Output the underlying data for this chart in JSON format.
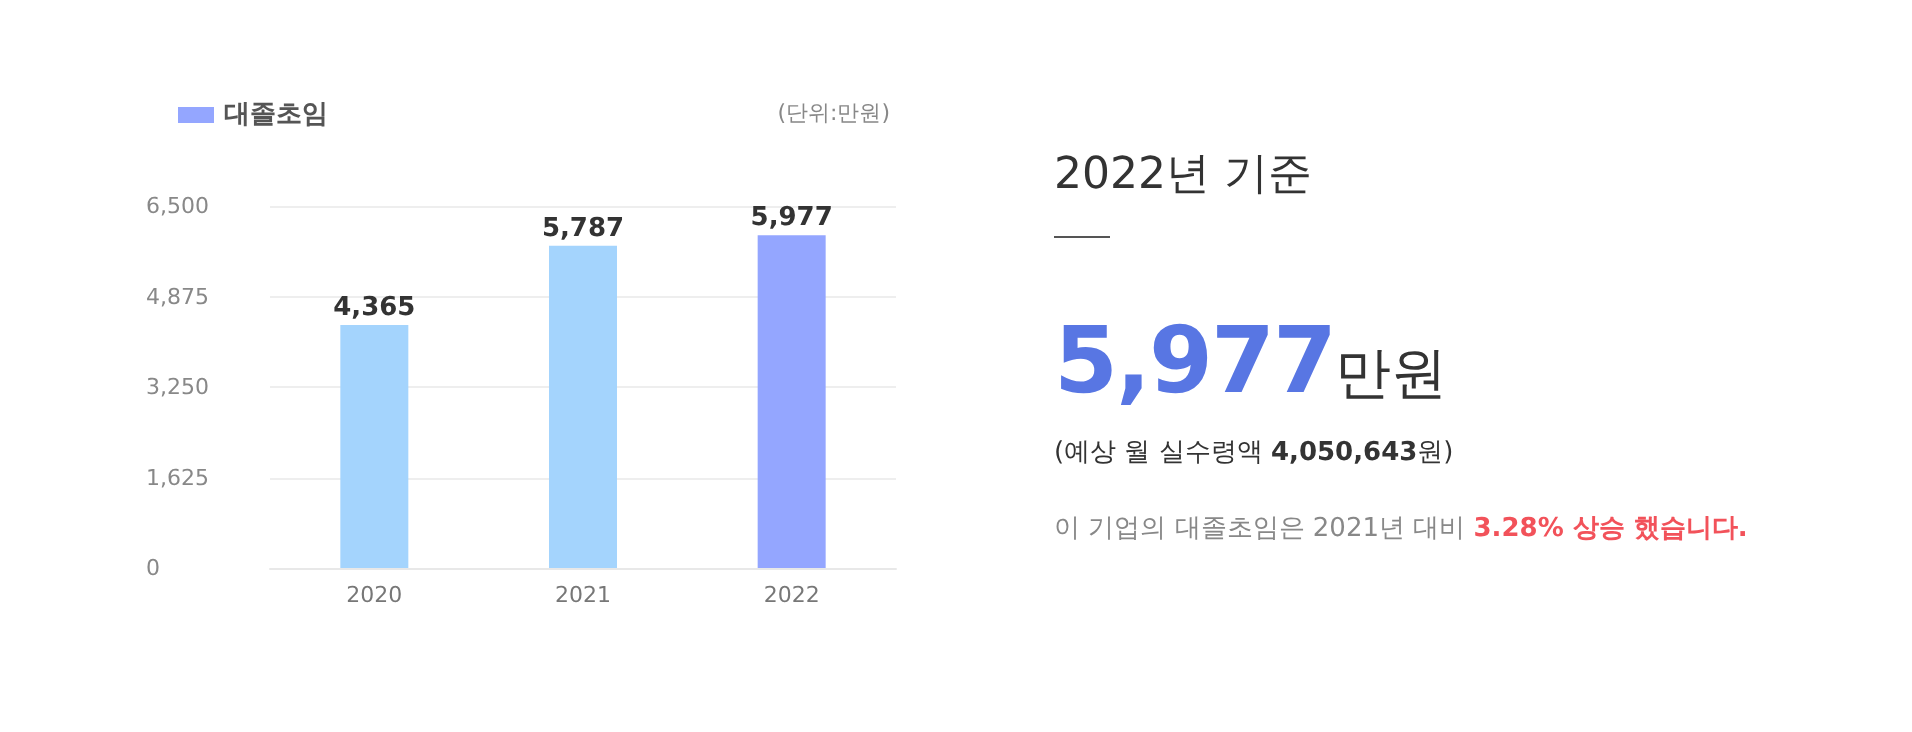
{
  "chart_data": {
    "type": "bar",
    "categories": [
      "2020",
      "2021",
      "2022"
    ],
    "series": [
      {
        "name": "대졸초임",
        "color": "#94a6ff",
        "colors": [
          "#a4d4fd",
          "#a4d4fd",
          "#94a6ff"
        ],
        "values": [
          4365,
          5787,
          5977
        ],
        "value_labels": [
          "4,365",
          "5,787",
          "5,977"
        ]
      }
    ],
    "ylim": [
      0,
      6500
    ],
    "yticks": [
      0,
      {
        "value": 1625,
        "label": "1,625"
      },
      {
        "value": 3250,
        "label": "3,250"
      },
      {
        "value": 4875,
        "label": "4,875"
      },
      {
        "value": 6500,
        "label": "6,500"
      }
    ],
    "grid": "y",
    "legend": "top left",
    "annotations": [
      "(단위:만원)",
      "2022년 기준",
      "5,977만원",
      "(예상 월 실수령액 4,050,643원)",
      "이 기업의 대졸초임은 2021년 대비 3.28% 상승 했습니다."
    ]
  }
}
